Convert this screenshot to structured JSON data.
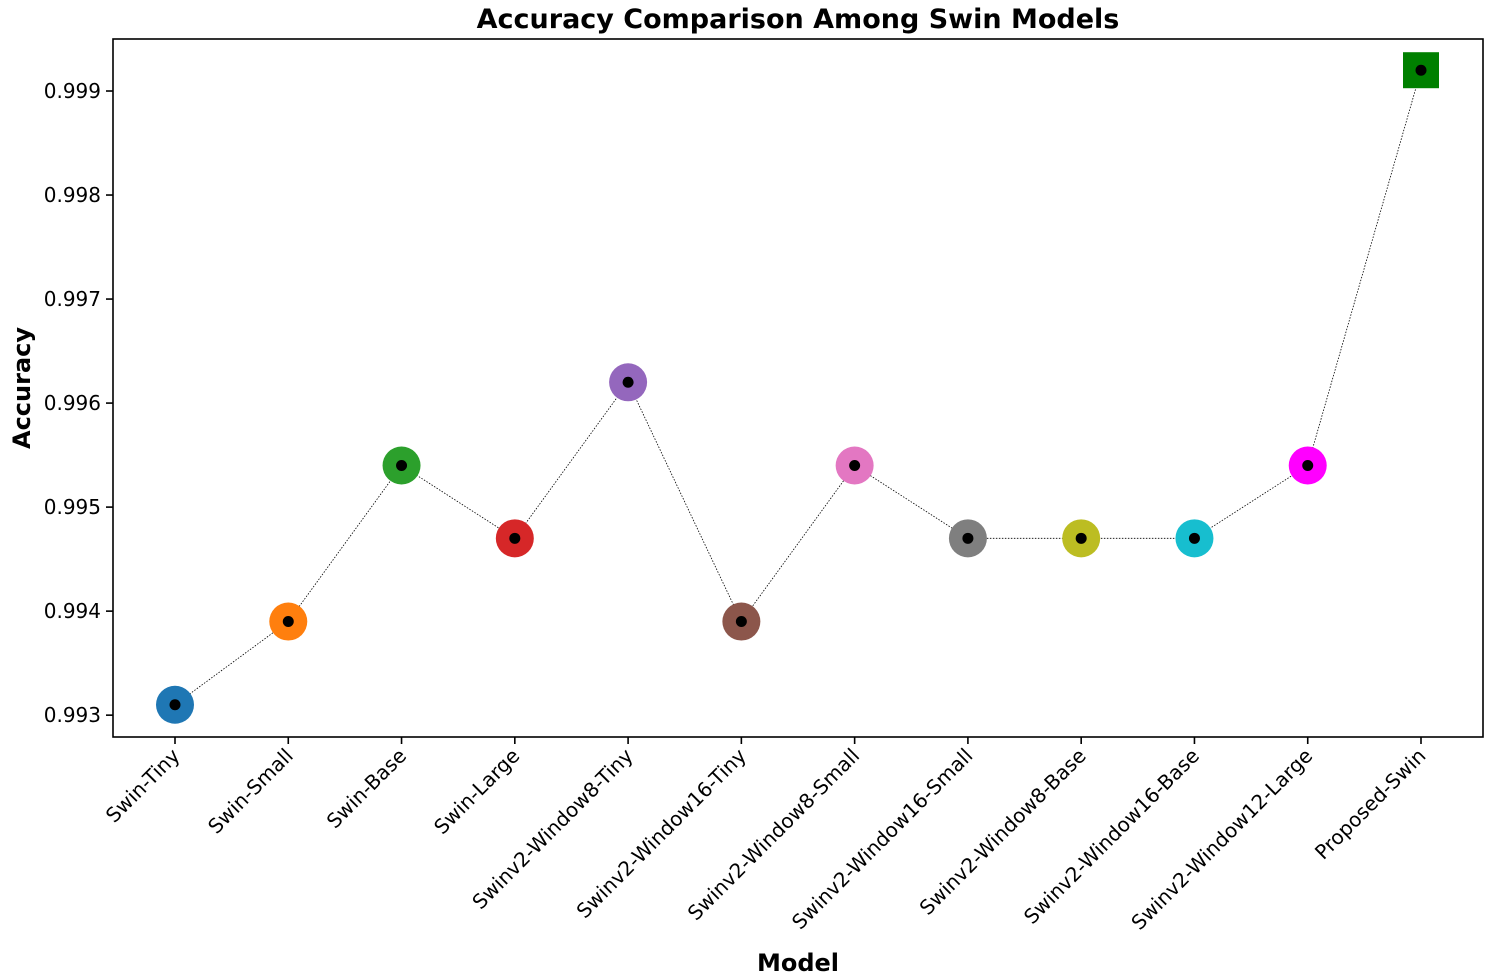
{
  "chart_data": {
    "type": "scatter",
    "title": "Accuracy Comparison Among Swin Models",
    "xlabel": "Model",
    "ylabel": "Accuracy",
    "categories": [
      "Swin-Tiny",
      "Swin-Small",
      "Swin-Base",
      "Swin-Large",
      "Swinv2-Window8-Tiny",
      "Swinv2-Window16-Tiny",
      "Swinv2-Window8-Small",
      "Swinv2-Window16-Small",
      "Swinv2-Window8-Base",
      "Swinv2-Window16-Base",
      "Swinv2-Window12-Large",
      "Proposed-Swin"
    ],
    "values": [
      0.9931,
      0.9939,
      0.9954,
      0.9947,
      0.9962,
      0.9939,
      0.9954,
      0.9947,
      0.9947,
      0.9947,
      0.9954,
      0.9992
    ],
    "marker_colors": [
      "#1f77b4",
      "#ff7f0e",
      "#2ca02c",
      "#d62728",
      "#9467bd",
      "#8c564b",
      "#e377c2",
      "#7f7f7f",
      "#bcbd22",
      "#17becf",
      "#ff00ff",
      "#008000"
    ],
    "marker_shapes": [
      "circle",
      "circle",
      "circle",
      "circle",
      "circle",
      "circle",
      "circle",
      "circle",
      "circle",
      "circle",
      "circle",
      "square"
    ],
    "center_dot_color": "#000000",
    "connecting_line": "dotted",
    "connecting_line_color": "#000000",
    "yticks": [
      0.993,
      0.994,
      0.995,
      0.996,
      0.997,
      0.998,
      0.999
    ],
    "ytick_labels": [
      "0.993",
      "0.994",
      "0.995",
      "0.996",
      "0.997",
      "0.998",
      "0.999"
    ],
    "ylim": [
      0.99279,
      0.9995
    ],
    "grid": false,
    "legend": "none"
  }
}
